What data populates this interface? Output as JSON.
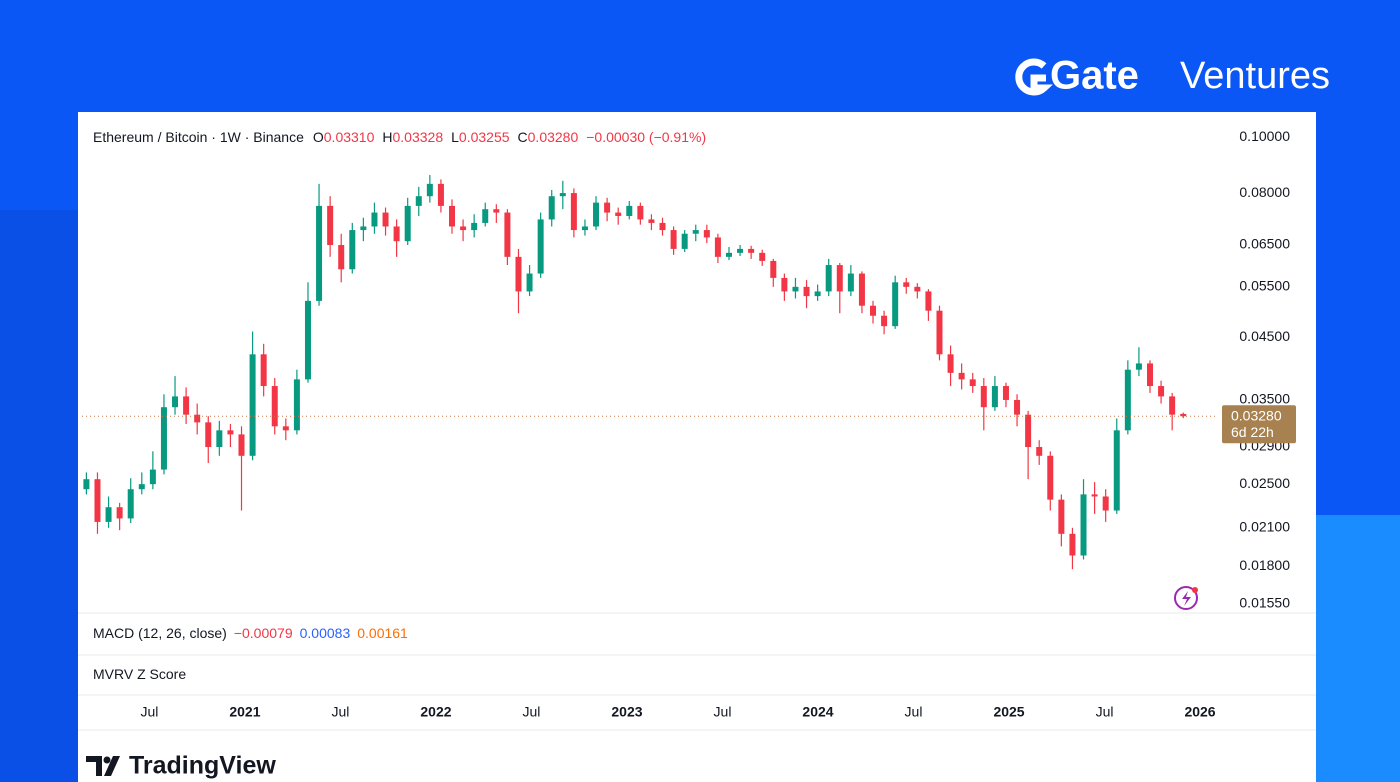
{
  "brand": {
    "name": "Gate",
    "suffix": "Ventures"
  },
  "footer": {
    "brand": "TradingView"
  },
  "chart_data": {
    "type": "candlestick",
    "log_scale": true,
    "title": "Ethereum / Bitcoin · 1W · Binance",
    "ohlc_legend": [
      {
        "label": "O",
        "value": "0.03310"
      },
      {
        "label": "H",
        "value": "0.03328"
      },
      {
        "label": "L",
        "value": "0.03255"
      },
      {
        "label": "C",
        "value": "0.03280"
      }
    ],
    "change": "−0.00030 (−0.91%)",
    "last_price_label": "0.03280",
    "countdown": "6d 22h",
    "up_color": "#089981",
    "down_color": "#f23645",
    "tag_color": "#a88150",
    "xlim": [
      2020.147,
      2026.094
    ],
    "xticks": [
      {
        "value": 2020.5,
        "label": "Jul"
      },
      2021,
      {
        "value": 2021.5,
        "label": "Jul"
      },
      2022,
      {
        "value": 2022.5,
        "label": "Jul"
      },
      2023,
      {
        "value": 2023.5,
        "label": "Jul"
      },
      2024,
      {
        "value": 2024.5,
        "label": "Jul"
      },
      2025,
      {
        "value": 2025.5,
        "label": "Jul"
      },
      2026
    ],
    "ylim": [
      0.015,
      0.105
    ],
    "yticks": [
      {
        "value": 0.1,
        "label": "0.10000"
      },
      {
        "value": 0.08,
        "label": "0.08000"
      },
      {
        "value": 0.065,
        "label": "0.06500"
      },
      {
        "value": 0.055,
        "label": "0.05500"
      },
      {
        "value": 0.045,
        "label": "0.04500"
      },
      {
        "value": 0.035,
        "label": "0.03500"
      },
      {
        "value": 0.029,
        "label": "0.02900"
      },
      {
        "value": 0.025,
        "label": "0.02500"
      },
      {
        "value": 0.021,
        "label": "0.02100"
      },
      {
        "value": 0.018,
        "label": "0.01800"
      },
      {
        "value": 0.0155,
        "label": "0.01550"
      }
    ],
    "x": [
      2020.17,
      2020.228,
      2020.286,
      2020.344,
      2020.402,
      2020.46,
      2020.518,
      2020.576,
      2020.634,
      2020.692,
      2020.75,
      2020.808,
      2020.866,
      2020.924,
      2020.982,
      2021.04,
      2021.098,
      2021.156,
      2021.214,
      2021.272,
      2021.33,
      2021.388,
      2021.446,
      2021.504,
      2021.562,
      2021.62,
      2021.678,
      2021.736,
      2021.794,
      2021.852,
      2021.91,
      2021.968,
      2022.026,
      2022.084,
      2022.142,
      2022.2,
      2022.258,
      2022.316,
      2022.374,
      2022.432,
      2022.49,
      2022.548,
      2022.606,
      2022.664,
      2022.722,
      2022.78,
      2022.838,
      2022.896,
      2022.954,
      2023.012,
      2023.07,
      2023.128,
      2023.186,
      2023.244,
      2023.302,
      2023.36,
      2023.418,
      2023.476,
      2023.534,
      2023.592,
      2023.65,
      2023.708,
      2023.766,
      2023.824,
      2023.882,
      2023.94,
      2023.998,
      2024.056,
      2024.114,
      2024.172,
      2024.23,
      2024.288,
      2024.346,
      2024.404,
      2024.462,
      2024.52,
      2024.578,
      2024.636,
      2024.694,
      2024.752,
      2024.81,
      2024.868,
      2024.926,
      2024.984,
      2025.042,
      2025.1,
      2025.158,
      2025.216,
      2025.274,
      2025.332,
      2025.39,
      2025.448,
      2025.506,
      2025.564,
      2025.622,
      2025.68,
      2025.738,
      2025.796,
      2025.854,
      2025.912
    ],
    "open": [
      0.0245,
      0.0255,
      0.0215,
      0.0228,
      0.0218,
      0.0245,
      0.025,
      0.0265,
      0.034,
      0.0355,
      0.033,
      0.032,
      0.029,
      0.031,
      0.0305,
      0.028,
      0.042,
      0.037,
      0.0315,
      0.031,
      0.038,
      0.052,
      0.076,
      0.065,
      0.059,
      0.069,
      0.07,
      0.074,
      0.07,
      0.066,
      0.076,
      0.079,
      0.083,
      0.076,
      0.07,
      0.069,
      0.071,
      0.075,
      0.074,
      0.062,
      0.054,
      0.058,
      0.072,
      0.079,
      0.08,
      0.069,
      0.07,
      0.077,
      0.074,
      0.073,
      0.076,
      0.072,
      0.071,
      0.069,
      0.064,
      0.068,
      0.069,
      0.067,
      0.062,
      0.063,
      0.064,
      0.063,
      0.061,
      0.057,
      0.054,
      0.055,
      0.053,
      0.054,
      0.06,
      0.054,
      0.058,
      0.051,
      0.049,
      0.047,
      0.056,
      0.055,
      0.054,
      0.05,
      0.042,
      0.039,
      0.038,
      0.037,
      0.034,
      0.037,
      0.035,
      0.033,
      0.029,
      0.028,
      0.0235,
      0.0205,
      0.0188,
      0.024,
      0.0238,
      0.0225,
      0.031,
      0.0395,
      0.0405,
      0.037,
      0.0355,
      0.0331
    ],
    "high": [
      0.0262,
      0.0262,
      0.0238,
      0.0232,
      0.0256,
      0.0262,
      0.0285,
      0.0358,
      0.0385,
      0.0368,
      0.0345,
      0.0328,
      0.0322,
      0.0318,
      0.0315,
      0.046,
      0.0438,
      0.0382,
      0.0325,
      0.0395,
      0.056,
      0.083,
      0.079,
      0.068,
      0.071,
      0.0725,
      0.077,
      0.0755,
      0.072,
      0.0785,
      0.082,
      0.086,
      0.0845,
      0.078,
      0.072,
      0.0735,
      0.077,
      0.0765,
      0.075,
      0.064,
      0.06,
      0.074,
      0.081,
      0.084,
      0.0815,
      0.072,
      0.079,
      0.0785,
      0.0755,
      0.0775,
      0.077,
      0.0735,
      0.0725,
      0.07,
      0.069,
      0.0705,
      0.0705,
      0.068,
      0.0645,
      0.065,
      0.0648,
      0.0638,
      0.0615,
      0.058,
      0.057,
      0.0565,
      0.0555,
      0.0615,
      0.0605,
      0.06,
      0.0585,
      0.052,
      0.05,
      0.0575,
      0.057,
      0.0558,
      0.0545,
      0.051,
      0.0435,
      0.0405,
      0.039,
      0.0382,
      0.0385,
      0.0375,
      0.0358,
      0.0335,
      0.0298,
      0.0285,
      0.024,
      0.021,
      0.0255,
      0.0252,
      0.0245,
      0.0325,
      0.041,
      0.0432,
      0.041,
      0.0378,
      0.036,
      0.03328
    ],
    "low": [
      0.024,
      0.0205,
      0.021,
      0.0208,
      0.0214,
      0.024,
      0.0245,
      0.026,
      0.033,
      0.0318,
      0.0305,
      0.0272,
      0.028,
      0.029,
      0.0225,
      0.0275,
      0.0355,
      0.0305,
      0.0298,
      0.0305,
      0.0375,
      0.051,
      0.062,
      0.056,
      0.058,
      0.066,
      0.068,
      0.0675,
      0.062,
      0.065,
      0.073,
      0.077,
      0.074,
      0.068,
      0.066,
      0.067,
      0.07,
      0.071,
      0.06,
      0.0495,
      0.053,
      0.057,
      0.07,
      0.075,
      0.067,
      0.0675,
      0.069,
      0.0715,
      0.0705,
      0.072,
      0.0705,
      0.069,
      0.0675,
      0.0625,
      0.0632,
      0.066,
      0.0655,
      0.0605,
      0.0612,
      0.0622,
      0.0615,
      0.0598,
      0.055,
      0.052,
      0.0525,
      0.0505,
      0.052,
      0.053,
      0.0495,
      0.053,
      0.0495,
      0.0475,
      0.0455,
      0.0465,
      0.0535,
      0.0525,
      0.048,
      0.041,
      0.037,
      0.0365,
      0.036,
      0.031,
      0.0335,
      0.034,
      0.0315,
      0.0255,
      0.027,
      0.0225,
      0.0195,
      0.0178,
      0.0185,
      0.0222,
      0.0215,
      0.0222,
      0.0305,
      0.0385,
      0.036,
      0.0345,
      0.031,
      0.03255
    ],
    "close": [
      0.0255,
      0.0215,
      0.0228,
      0.0218,
      0.0245,
      0.025,
      0.0265,
      0.034,
      0.0355,
      0.033,
      0.032,
      0.029,
      0.031,
      0.0305,
      0.028,
      0.042,
      0.037,
      0.0315,
      0.031,
      0.038,
      0.052,
      0.076,
      0.065,
      0.059,
      0.069,
      0.07,
      0.074,
      0.07,
      0.066,
      0.076,
      0.079,
      0.083,
      0.076,
      0.07,
      0.069,
      0.071,
      0.075,
      0.074,
      0.062,
      0.054,
      0.058,
      0.072,
      0.079,
      0.08,
      0.069,
      0.07,
      0.077,
      0.074,
      0.073,
      0.076,
      0.072,
      0.071,
      0.069,
      0.064,
      0.068,
      0.069,
      0.067,
      0.062,
      0.063,
      0.064,
      0.063,
      0.061,
      0.057,
      0.054,
      0.055,
      0.053,
      0.054,
      0.06,
      0.054,
      0.058,
      0.051,
      0.049,
      0.047,
      0.056,
      0.055,
      0.054,
      0.05,
      0.042,
      0.039,
      0.038,
      0.037,
      0.034,
      0.037,
      0.035,
      0.033,
      0.029,
      0.028,
      0.0235,
      0.0205,
      0.0188,
      0.024,
      0.0238,
      0.0225,
      0.031,
      0.0395,
      0.0405,
      0.037,
      0.0355,
      0.033,
      0.0328
    ],
    "panes": [
      {
        "title": "MACD (12, 26, close)",
        "values": [
          {
            "text": "−0.00079",
            "color": "#f23645"
          },
          {
            "text": "0.00083",
            "color": "#2962ff"
          },
          {
            "text": "0.00161",
            "color": "#ff6d00"
          }
        ]
      },
      {
        "title": "MVRV Z Score"
      }
    ]
  }
}
